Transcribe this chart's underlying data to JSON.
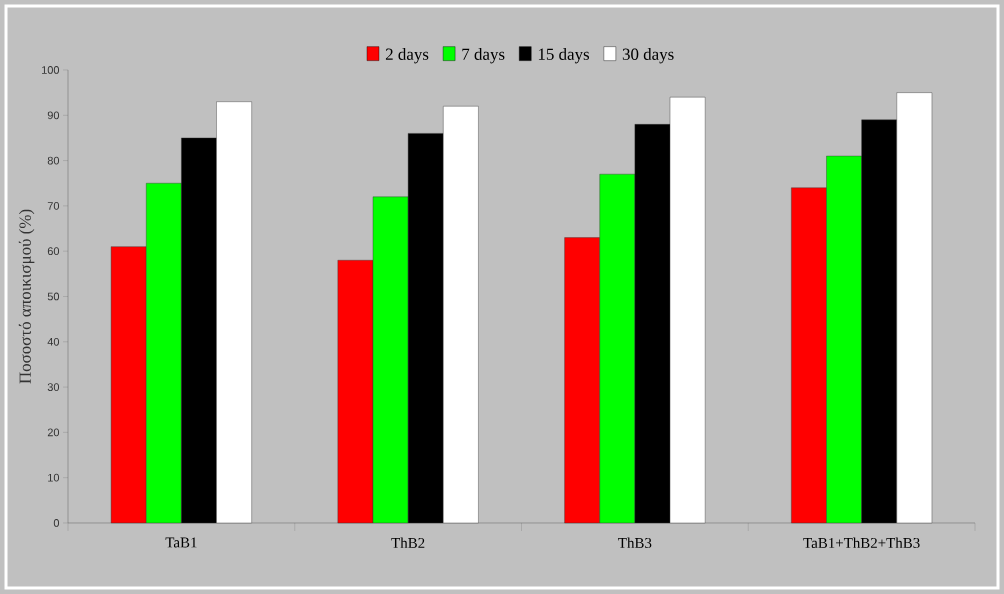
{
  "chart_data": {
    "type": "bar",
    "ylabel": "Ποσοστό αποικισμού (%)",
    "categories": [
      "TaB1",
      "ThB2",
      "ThB3",
      "TaB1+ThB2+ThB3"
    ],
    "series": [
      {
        "name": "2 days",
        "color": "#ff0000",
        "values": [
          61,
          58,
          63,
          74
        ]
      },
      {
        "name": "7 days",
        "color": "#00ff00",
        "values": [
          75,
          72,
          77,
          81
        ]
      },
      {
        "name": "15 days",
        "color": "#000000",
        "values": [
          85,
          86,
          88,
          89
        ]
      },
      {
        "name": "30 days",
        "color": "#ffffff",
        "values": [
          93,
          92,
          94,
          95
        ]
      }
    ],
    "ylim": [
      0,
      100
    ],
    "yticks": [
      0,
      10,
      20,
      30,
      40,
      50,
      60,
      70,
      80,
      90,
      100
    ],
    "legend": "top"
  }
}
